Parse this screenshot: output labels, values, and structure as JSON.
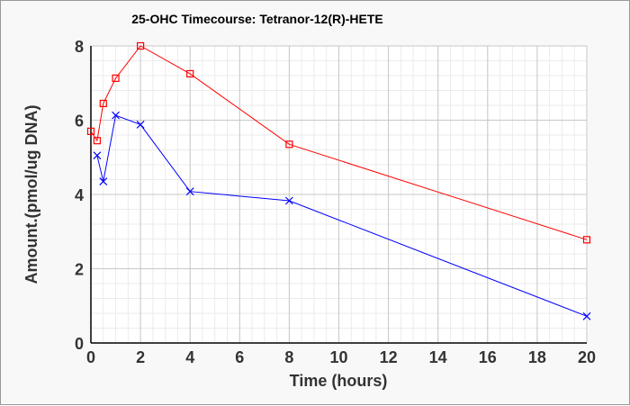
{
  "chart_data": {
    "type": "line",
    "title": "25-OHC Timecourse: Tetranor-12(R)-HETE",
    "xlabel": "Time (hours)",
    "ylabel": "Amount.(pmol/ug DNA)",
    "xlim": [
      0,
      20
    ],
    "ylim": [
      0,
      8
    ],
    "xticks": [
      0,
      2,
      4,
      6,
      8,
      10,
      12,
      14,
      16,
      18,
      20
    ],
    "yticks": [
      0,
      2,
      4,
      6,
      8
    ],
    "grid": true,
    "series": [
      {
        "name": "series-red",
        "color": "#ff0000",
        "marker": "square",
        "x": [
          0,
          0.25,
          0.5,
          1,
          2,
          4,
          8,
          20
        ],
        "y": [
          5.7,
          5.45,
          6.45,
          7.13,
          8.0,
          7.25,
          5.35,
          2.78
        ]
      },
      {
        "name": "series-blue",
        "color": "#0000ff",
        "marker": "x",
        "x": [
          0.25,
          0.5,
          1,
          2,
          4,
          8,
          20
        ],
        "y": [
          5.05,
          4.35,
          6.13,
          5.88,
          4.08,
          3.83,
          0.72
        ]
      }
    ]
  }
}
